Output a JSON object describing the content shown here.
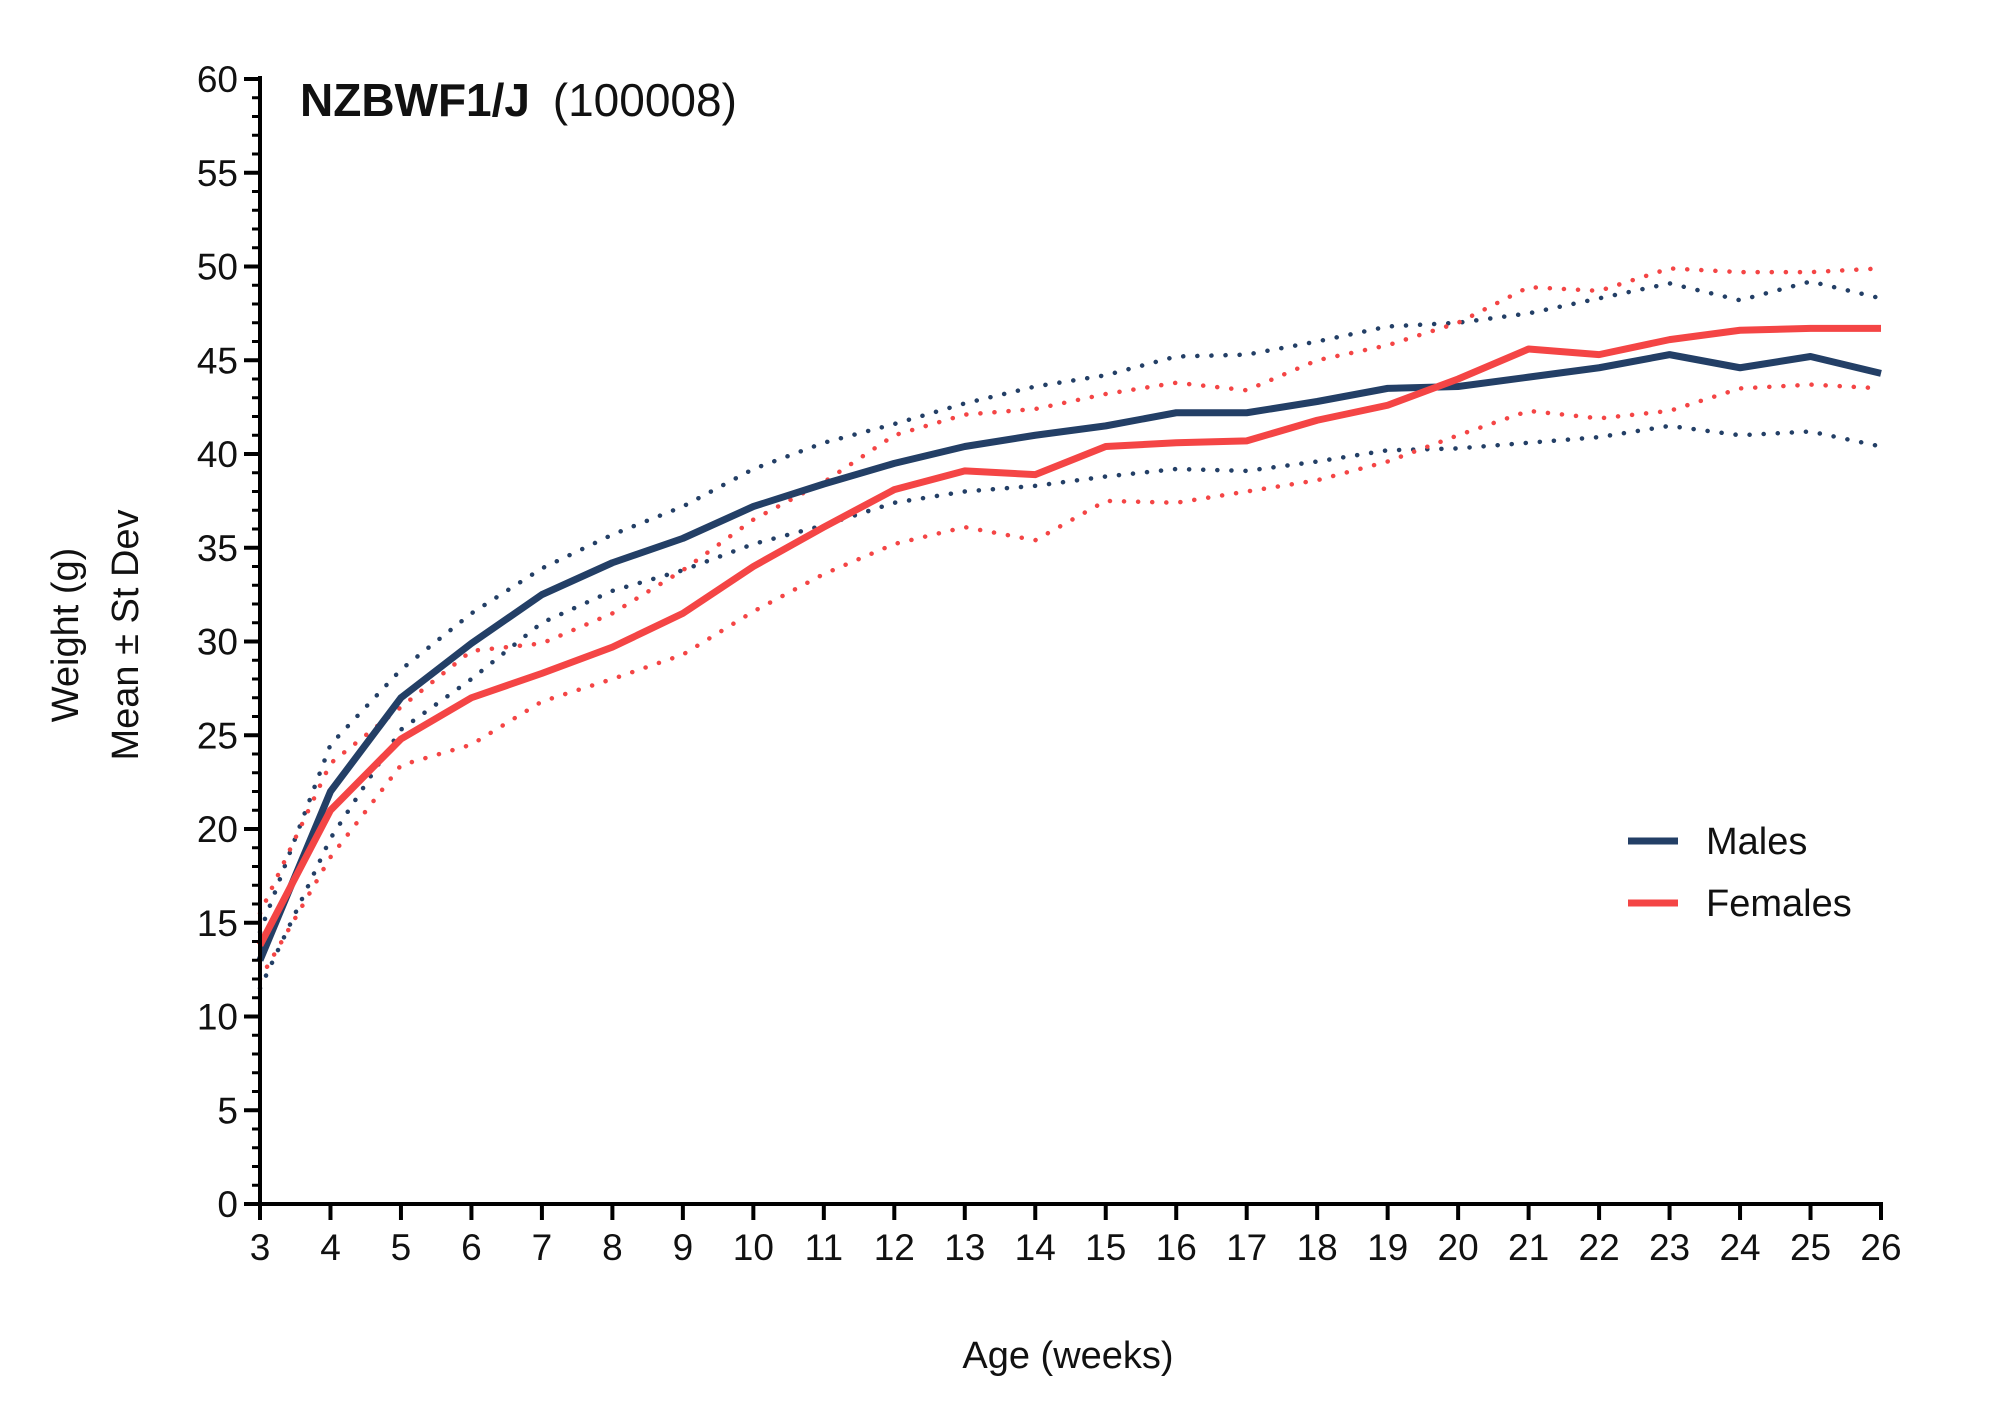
{
  "chart_data": {
    "type": "line",
    "title_bold": "NZBWF1/J",
    "title_rest": "(100008)",
    "xlabel": "Age (weeks)",
    "ylabel_line1": "Weight (g)",
    "ylabel_line2": "Mean ± St Dev",
    "xlim": [
      3,
      26
    ],
    "ylim": [
      0,
      60
    ],
    "x_ticks": [
      3,
      4,
      5,
      6,
      7,
      8,
      9,
      10,
      11,
      12,
      13,
      14,
      15,
      16,
      17,
      18,
      19,
      20,
      21,
      22,
      23,
      24,
      25,
      26
    ],
    "y_ticks": [
      0,
      5,
      10,
      15,
      20,
      25,
      30,
      35,
      40,
      45,
      50,
      55,
      60
    ],
    "legend_position": "right-middle",
    "x": [
      3,
      4,
      5,
      6,
      7,
      8,
      9,
      10,
      11,
      12,
      13,
      14,
      15,
      16,
      17,
      18,
      19,
      20,
      21,
      22,
      23,
      24,
      25,
      26
    ],
    "series": [
      {
        "name": "Males",
        "color": "#233f66",
        "mean": [
          13.0,
          22.0,
          27.0,
          29.9,
          32.5,
          34.2,
          35.5,
          37.2,
          38.4,
          39.5,
          40.4,
          41.0,
          41.5,
          42.2,
          42.2,
          42.8,
          43.5,
          43.6,
          44.1,
          44.6,
          45.3,
          44.6,
          45.2,
          44.3
        ],
        "upper": [
          14.5,
          24.5,
          28.5,
          31.5,
          33.9,
          35.7,
          37.2,
          39.2,
          40.6,
          41.6,
          42.7,
          43.6,
          44.2,
          45.2,
          45.3,
          46.0,
          46.8,
          47.0,
          47.5,
          48.3,
          49.1,
          48.2,
          49.2,
          48.3
        ],
        "lower": [
          11.5,
          19.5,
          25.3,
          28.0,
          31.0,
          32.7,
          33.8,
          35.2,
          36.2,
          37.4,
          38.0,
          38.3,
          38.8,
          39.2,
          39.1,
          39.6,
          40.2,
          40.3,
          40.6,
          40.9,
          41.5,
          41.0,
          41.2,
          40.4
        ]
      },
      {
        "name": "Females",
        "color": "#f44545",
        "mean": [
          13.8,
          21.0,
          24.8,
          27.0,
          28.3,
          29.7,
          31.5,
          34.0,
          36.1,
          38.1,
          39.1,
          38.9,
          40.4,
          40.6,
          40.7,
          41.8,
          42.6,
          44.0,
          45.6,
          45.3,
          46.1,
          46.6,
          46.7,
          46.7
        ],
        "upper": [
          15.5,
          23.5,
          26.5,
          29.5,
          29.9,
          31.5,
          33.8,
          36.5,
          38.5,
          41.0,
          42.1,
          42.4,
          43.2,
          43.8,
          43.4,
          45.0,
          45.8,
          47.0,
          48.9,
          48.7,
          49.9,
          49.7,
          49.7,
          49.9
        ],
        "lower": [
          12.0,
          18.5,
          23.4,
          24.5,
          26.8,
          28.0,
          29.3,
          31.6,
          33.6,
          35.2,
          36.1,
          35.4,
          37.5,
          37.4,
          38.0,
          38.6,
          39.6,
          41.0,
          42.3,
          41.9,
          42.3,
          43.5,
          43.7,
          43.5
        ]
      }
    ]
  }
}
